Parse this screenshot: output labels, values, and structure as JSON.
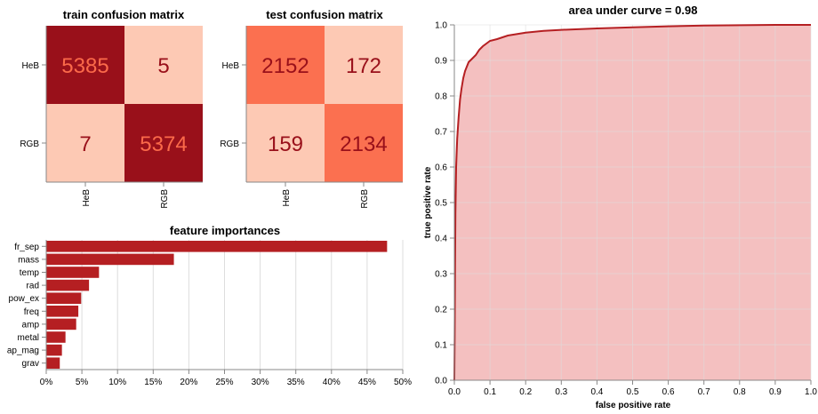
{
  "colors": {
    "cm_high": "#99101a",
    "cm_mid": "#fb7050",
    "cm_low": "#fdc9b4",
    "text_on_dark": "#fb6a4a",
    "text_on_light": "#99101a",
    "bar": "#b51f22",
    "roc_line": "#b51f22",
    "roc_fill": "#f4c0c0",
    "grid": "#dddddd"
  },
  "chart_data": [
    {
      "type": "heatmap",
      "title": "train confusion matrix",
      "rows": [
        "HeB",
        "RGB"
      ],
      "columns": [
        "HeB",
        "RGB"
      ],
      "values": [
        [
          5385,
          5
        ],
        [
          7,
          5374
        ]
      ]
    },
    {
      "type": "heatmap",
      "title": "test confusion matrix",
      "rows": [
        "HeB",
        "RGB"
      ],
      "columns": [
        "HeB",
        "RGB"
      ],
      "values": [
        [
          2152,
          172
        ],
        [
          159,
          2134
        ]
      ]
    },
    {
      "type": "bar",
      "orientation": "horizontal",
      "title": "feature importances",
      "categories": [
        "fr_sep",
        "mass",
        "temp",
        "rad",
        "pow_ex",
        "freq",
        "amp",
        "metal",
        "ap_mag",
        "grav"
      ],
      "values": [
        47.8,
        17.9,
        7.4,
        6.0,
        4.9,
        4.5,
        4.2,
        2.7,
        2.2,
        1.9
      ],
      "xlim": [
        0,
        50
      ],
      "xticks": [
        "0%",
        "5%",
        "10%",
        "15%",
        "20%",
        "25%",
        "30%",
        "35%",
        "40%",
        "45%",
        "50%"
      ],
      "grid": true
    },
    {
      "type": "area",
      "title": "area under curve = 0.98",
      "xlabel": "false positive rate",
      "ylabel": "true positive rate",
      "xlim": [
        0,
        1
      ],
      "ylim": [
        0,
        1
      ],
      "xticks": [
        "0.0",
        "0.1",
        "0.2",
        "0.3",
        "0.4",
        "0.5",
        "0.6",
        "0.7",
        "0.8",
        "0.9",
        "1.0"
      ],
      "yticks": [
        "0.0",
        "0.1",
        "0.2",
        "0.3",
        "0.4",
        "0.5",
        "0.6",
        "0.7",
        "0.8",
        "0.9",
        "1.0"
      ],
      "grid": true,
      "x": [
        0,
        0.001,
        0.002,
        0.003,
        0.005,
        0.008,
        0.012,
        0.016,
        0.02,
        0.025,
        0.03,
        0.04,
        0.05,
        0.06,
        0.07,
        0.08,
        0.1,
        0.12,
        0.15,
        0.2,
        0.25,
        0.3,
        0.4,
        0.5,
        0.6,
        0.7,
        0.8,
        0.9,
        1.0
      ],
      "y": [
        0,
        0.13,
        0.32,
        0.47,
        0.6,
        0.68,
        0.74,
        0.79,
        0.82,
        0.85,
        0.87,
        0.895,
        0.905,
        0.915,
        0.93,
        0.94,
        0.955,
        0.96,
        0.97,
        0.978,
        0.983,
        0.986,
        0.99,
        0.993,
        0.996,
        0.998,
        0.999,
        1.0,
        1.0
      ]
    }
  ]
}
